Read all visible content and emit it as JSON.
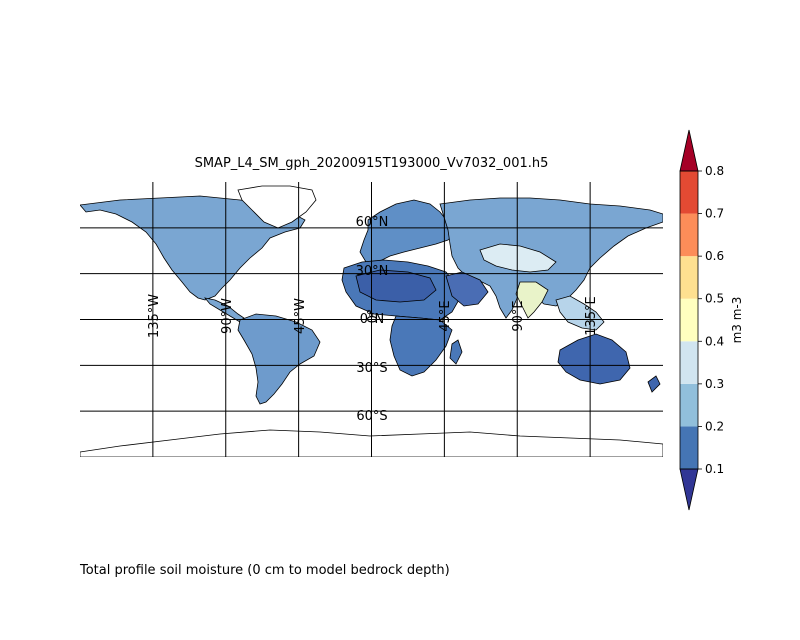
{
  "title": "SMAP_L4_SM_gph_20200915T193000_Vv7032_001.h5",
  "caption": "Total profile soil moisture (0 cm to model bedrock depth)",
  "map": {
    "projection": "Plate Carree",
    "extent": {
      "lon": [
        -180,
        180
      ],
      "lat": [
        -90,
        90
      ]
    },
    "grid_lons": [
      -135,
      -90,
      -45,
      0,
      45,
      90,
      135
    ],
    "grid_lats": [
      60,
      30,
      0,
      -30,
      -60
    ],
    "lon_labels": [
      "135°W",
      "90°W",
      "45°W",
      "0°",
      "45°E",
      "90°E",
      "135°E"
    ],
    "lat_labels": [
      "60°N",
      "30°N",
      "0°N",
      "30°S",
      "60°S"
    ],
    "ocean_color": "#ffffff",
    "coastline_color": "#000000"
  },
  "colorbar": {
    "label": "m3 m-3",
    "ticks": [
      "0.1",
      "0.2",
      "0.3",
      "0.4",
      "0.5",
      "0.6",
      "0.7",
      "0.8"
    ],
    "colors": [
      "#4575b4",
      "#91bfdb",
      "#d1e5f0",
      "#ffffbf",
      "#fee090",
      "#fc8d59",
      "#e34a33",
      "#b2182b"
    ],
    "under_color": "#313695",
    "over_color": "#a50026",
    "extend": "both"
  },
  "regions": {
    "north_america": "#7aa6d2",
    "south_america": "#6e9bcc",
    "europe": "#5f8fc6",
    "africa_north": "#4a78b8",
    "sahara": "#3b5fa8",
    "africa_south": "#4a78b8",
    "arabia": "#4a6db4",
    "asia": "#7aa6d2",
    "asia_desert": "#dcecf3",
    "india": "#e9f3c9",
    "se_asia": "#b7d4ea",
    "australia": "#3f66ae",
    "greenland": "#ffffff",
    "antarctica": "#ffffff"
  }
}
